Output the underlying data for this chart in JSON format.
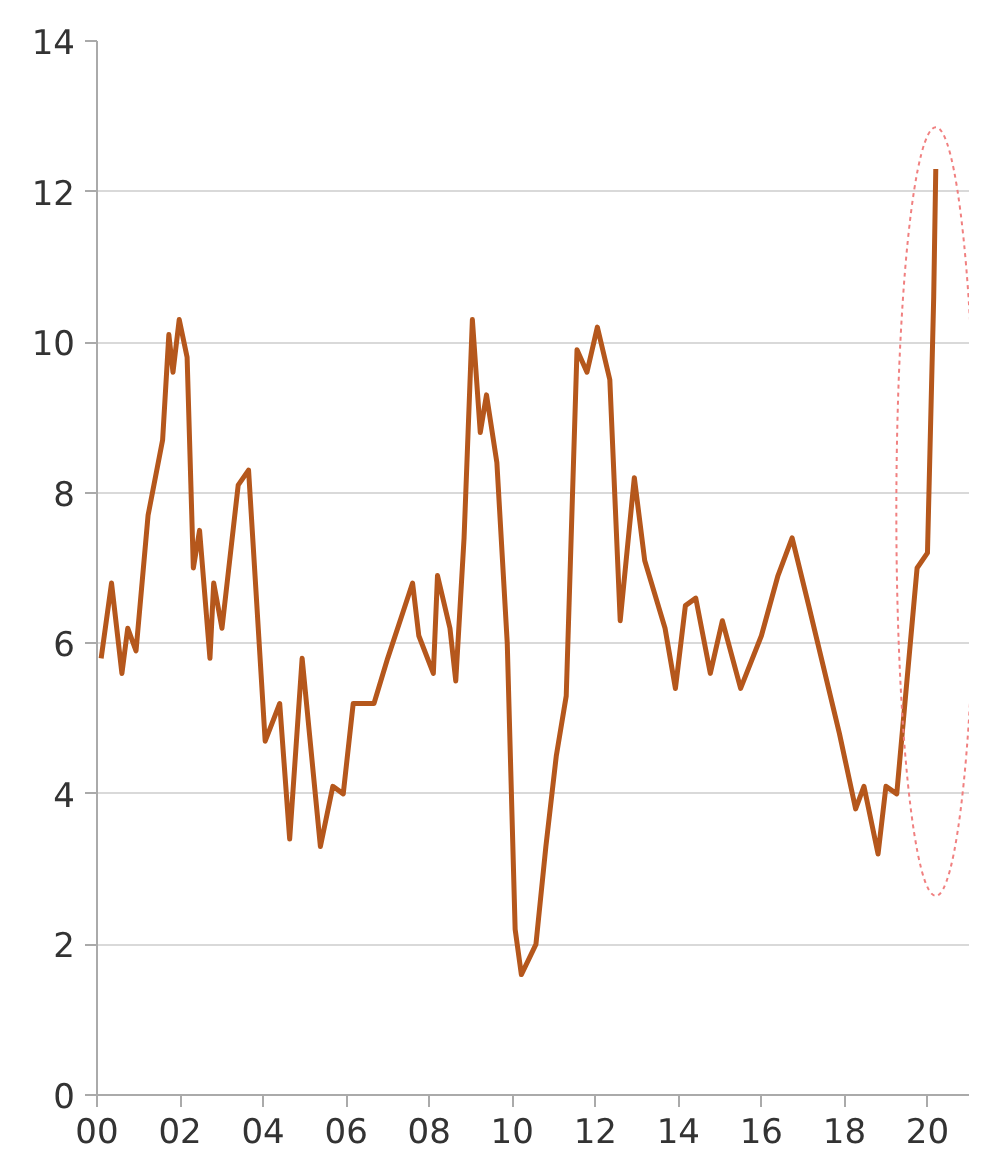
{
  "chart_data": {
    "type": "line",
    "x": [
      0.1,
      0.35,
      0.6,
      0.74,
      0.94,
      1.23,
      1.58,
      1.73,
      1.83,
      1.98,
      2.17,
      2.32,
      2.47,
      2.72,
      2.81,
      3.01,
      3.4,
      3.65,
      4.05,
      4.4,
      4.64,
      4.94,
      5.38,
      5.68,
      5.93,
      6.17,
      6.67,
      7.0,
      7.36,
      7.6,
      7.75,
      8.1,
      8.2,
      8.5,
      8.64,
      8.84,
      9.04,
      9.23,
      9.38,
      9.63,
      9.88,
      10.07,
      10.22,
      10.57,
      10.81,
      11.06,
      11.3,
      11.56,
      11.8,
      12.05,
      12.35,
      12.6,
      12.94,
      13.19,
      13.68,
      13.93,
      14.17,
      14.42,
      14.77,
      15.06,
      15.5,
      16.0,
      16.4,
      16.74,
      17.14,
      17.88,
      18.27,
      18.47,
      18.81,
      19.0,
      19.26,
      19.75,
      20.0,
      20.15,
      20.2
    ],
    "series": [
      {
        "color": "#b5571c",
        "values": [
          5.8,
          6.8,
          5.6,
          6.2,
          5.9,
          7.7,
          8.7,
          10.1,
          9.6,
          10.3,
          9.8,
          7.0,
          7.5,
          5.8,
          6.8,
          6.2,
          8.1,
          8.3,
          4.7,
          5.2,
          3.4,
          5.8,
          3.3,
          4.1,
          4.0,
          5.2,
          5.2,
          5.8,
          6.4,
          6.8,
          6.1,
          5.6,
          6.9,
          6.2,
          5.5,
          7.4,
          10.3,
          8.8,
          9.3,
          8.4,
          6.0,
          2.2,
          1.6,
          2.0,
          3.3,
          4.5,
          5.3,
          9.9,
          9.6,
          10.2,
          9.5,
          6.3,
          8.2,
          7.1,
          6.2,
          5.4,
          6.5,
          6.6,
          5.6,
          6.3,
          5.4,
          6.1,
          6.9,
          7.4,
          6.5,
          4.8,
          3.8,
          4.1,
          3.2,
          4.1,
          4.0,
          7.0,
          7.2,
          10.6,
          12.3
        ]
      }
    ],
    "xlim": [
      0,
      21
    ],
    "xticks": [
      {
        "value": 0,
        "label": "00"
      },
      {
        "value": 2,
        "label": "02"
      },
      {
        "value": 4,
        "label": "04"
      },
      {
        "value": 6,
        "label": "06"
      },
      {
        "value": 8,
        "label": "08"
      },
      {
        "value": 10,
        "label": "10"
      },
      {
        "value": 12,
        "label": "12"
      },
      {
        "value": 14,
        "label": "14"
      },
      {
        "value": 16,
        "label": "16"
      },
      {
        "value": 18,
        "label": "18"
      },
      {
        "value": 20,
        "label": "20"
      }
    ],
    "ylim": [
      0,
      14
    ],
    "yticks": [
      0,
      2,
      4,
      6,
      8,
      10,
      12,
      14
    ],
    "grid": "y",
    "marker": "none",
    "line_style": "solid"
  }
}
